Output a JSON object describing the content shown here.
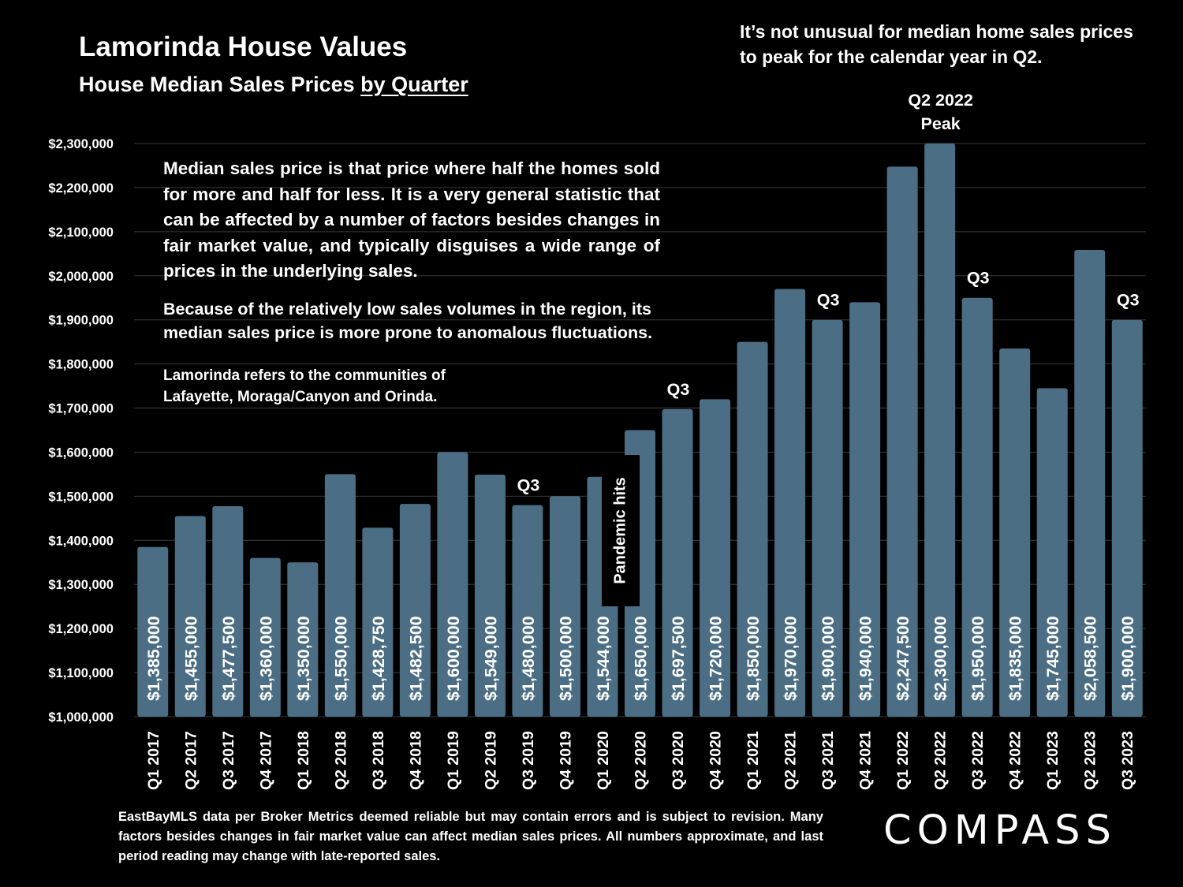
{
  "header": {
    "title": "Lamorinda House Values",
    "subtitle_prefix": "House Median Sales Prices ",
    "subtitle_link": "by Quarter"
  },
  "top_note": "It’s not unusual for median home sales prices to peak for the calendar year in Q2.",
  "explanation": {
    "para1": "Median sales price is that price where half the homes sold for more and half for less. It is a very general statistic that can be affected by a number of factors besides changes in fair market value, and typically disguises a wide range of prices in the underlying sales.",
    "para2": "Because of the relatively low sales volumes in the region, its median sales price is more prone to anomalous fluctuations.",
    "para3": "Lamorinda refers to the communities of Lafayette, Moraga/Canyon and Orinda."
  },
  "pandemic_label": "Pandemic hits",
  "footnote": "EastBayMLS data per Broker Metrics deemed reliable but may contain errors and is subject to revision. Many factors besides changes in fair market value can affect median sales prices. All numbers approximate, and last period reading may change with late-reported sales.",
  "logo": "COMPASS",
  "colors": {
    "bar": "#4b6e85",
    "background": "#000000",
    "grid": "#3a3a3a",
    "text": "#ffffff"
  },
  "chart_data": {
    "type": "bar",
    "title": "Lamorinda House Values",
    "categories": [
      "Q1 2017",
      "Q2 2017",
      "Q3 2017",
      "Q4 2017",
      "Q1 2018",
      "Q2 2018",
      "Q3 2018",
      "Q4 2018",
      "Q1 2019",
      "Q2 2019",
      "Q3 2019",
      "Q4 2019",
      "Q1 2020",
      "Q2 2020",
      "Q3 2020",
      "Q4 2020",
      "Q1 2021",
      "Q2 2021",
      "Q3 2021",
      "Q4 2021",
      "Q1 2022",
      "Q2 2022",
      "Q3 2022",
      "Q4 2022",
      "Q1 2023",
      "Q2 2023",
      "Q3 2023"
    ],
    "values": [
      1385000,
      1455000,
      1477500,
      1360000,
      1350000,
      1550000,
      1428750,
      1482500,
      1600000,
      1549000,
      1480000,
      1500000,
      1544000,
      1650000,
      1697500,
      1720000,
      1850000,
      1970000,
      1900000,
      1940000,
      2247500,
      2300000,
      1950000,
      1835000,
      1745000,
      2058500,
      1900000
    ],
    "data_labels": [
      "$1,385,000",
      "$1,455,000",
      "$1,477,500",
      "$1,360,000",
      "$1,350,000",
      "$1,550,000",
      "$1,428,750",
      "$1,482,500",
      "$1,600,000",
      "$1,549,000",
      "$1,480,000",
      "$1,500,000",
      "$1,544,000",
      "$1,650,000",
      "$1,697,500",
      "$1,720,000",
      "$1,850,000",
      "$1,970,000",
      "$1,900,000",
      "$1,940,000",
      "$2,247,500",
      "$2,300,000",
      "$1,950,000",
      "$1,835,000",
      "$1,745,000",
      "$2,058,500",
      "$1,900,000"
    ],
    "ylim": [
      1000000,
      2300000
    ],
    "yticks": [
      1000000,
      1100000,
      1200000,
      1300000,
      1400000,
      1500000,
      1600000,
      1700000,
      1800000,
      1900000,
      2000000,
      2100000,
      2200000,
      2300000
    ],
    "ytick_labels": [
      "$1,000,000",
      "$1,100,000",
      "$1,200,000",
      "$1,300,000",
      "$1,400,000",
      "$1,500,000",
      "$1,600,000",
      "$1,700,000",
      "$1,800,000",
      "$1,900,000",
      "$2,000,000",
      "$2,100,000",
      "$2,200,000",
      "$2,300,000"
    ],
    "grid": true,
    "annotations": [
      {
        "category": "Q3 2019",
        "lines": [
          "Q3"
        ]
      },
      {
        "category": "Q3 2020",
        "lines": [
          "Q3"
        ]
      },
      {
        "category": "Q3 2021",
        "lines": [
          "Q3"
        ]
      },
      {
        "category": "Q2 2022",
        "lines": [
          "Q2 2022",
          "Peak"
        ]
      },
      {
        "category": "Q3 2022",
        "lines": [
          "Q3"
        ]
      },
      {
        "category": "Q3 2023",
        "lines": [
          "Q3"
        ]
      }
    ]
  }
}
